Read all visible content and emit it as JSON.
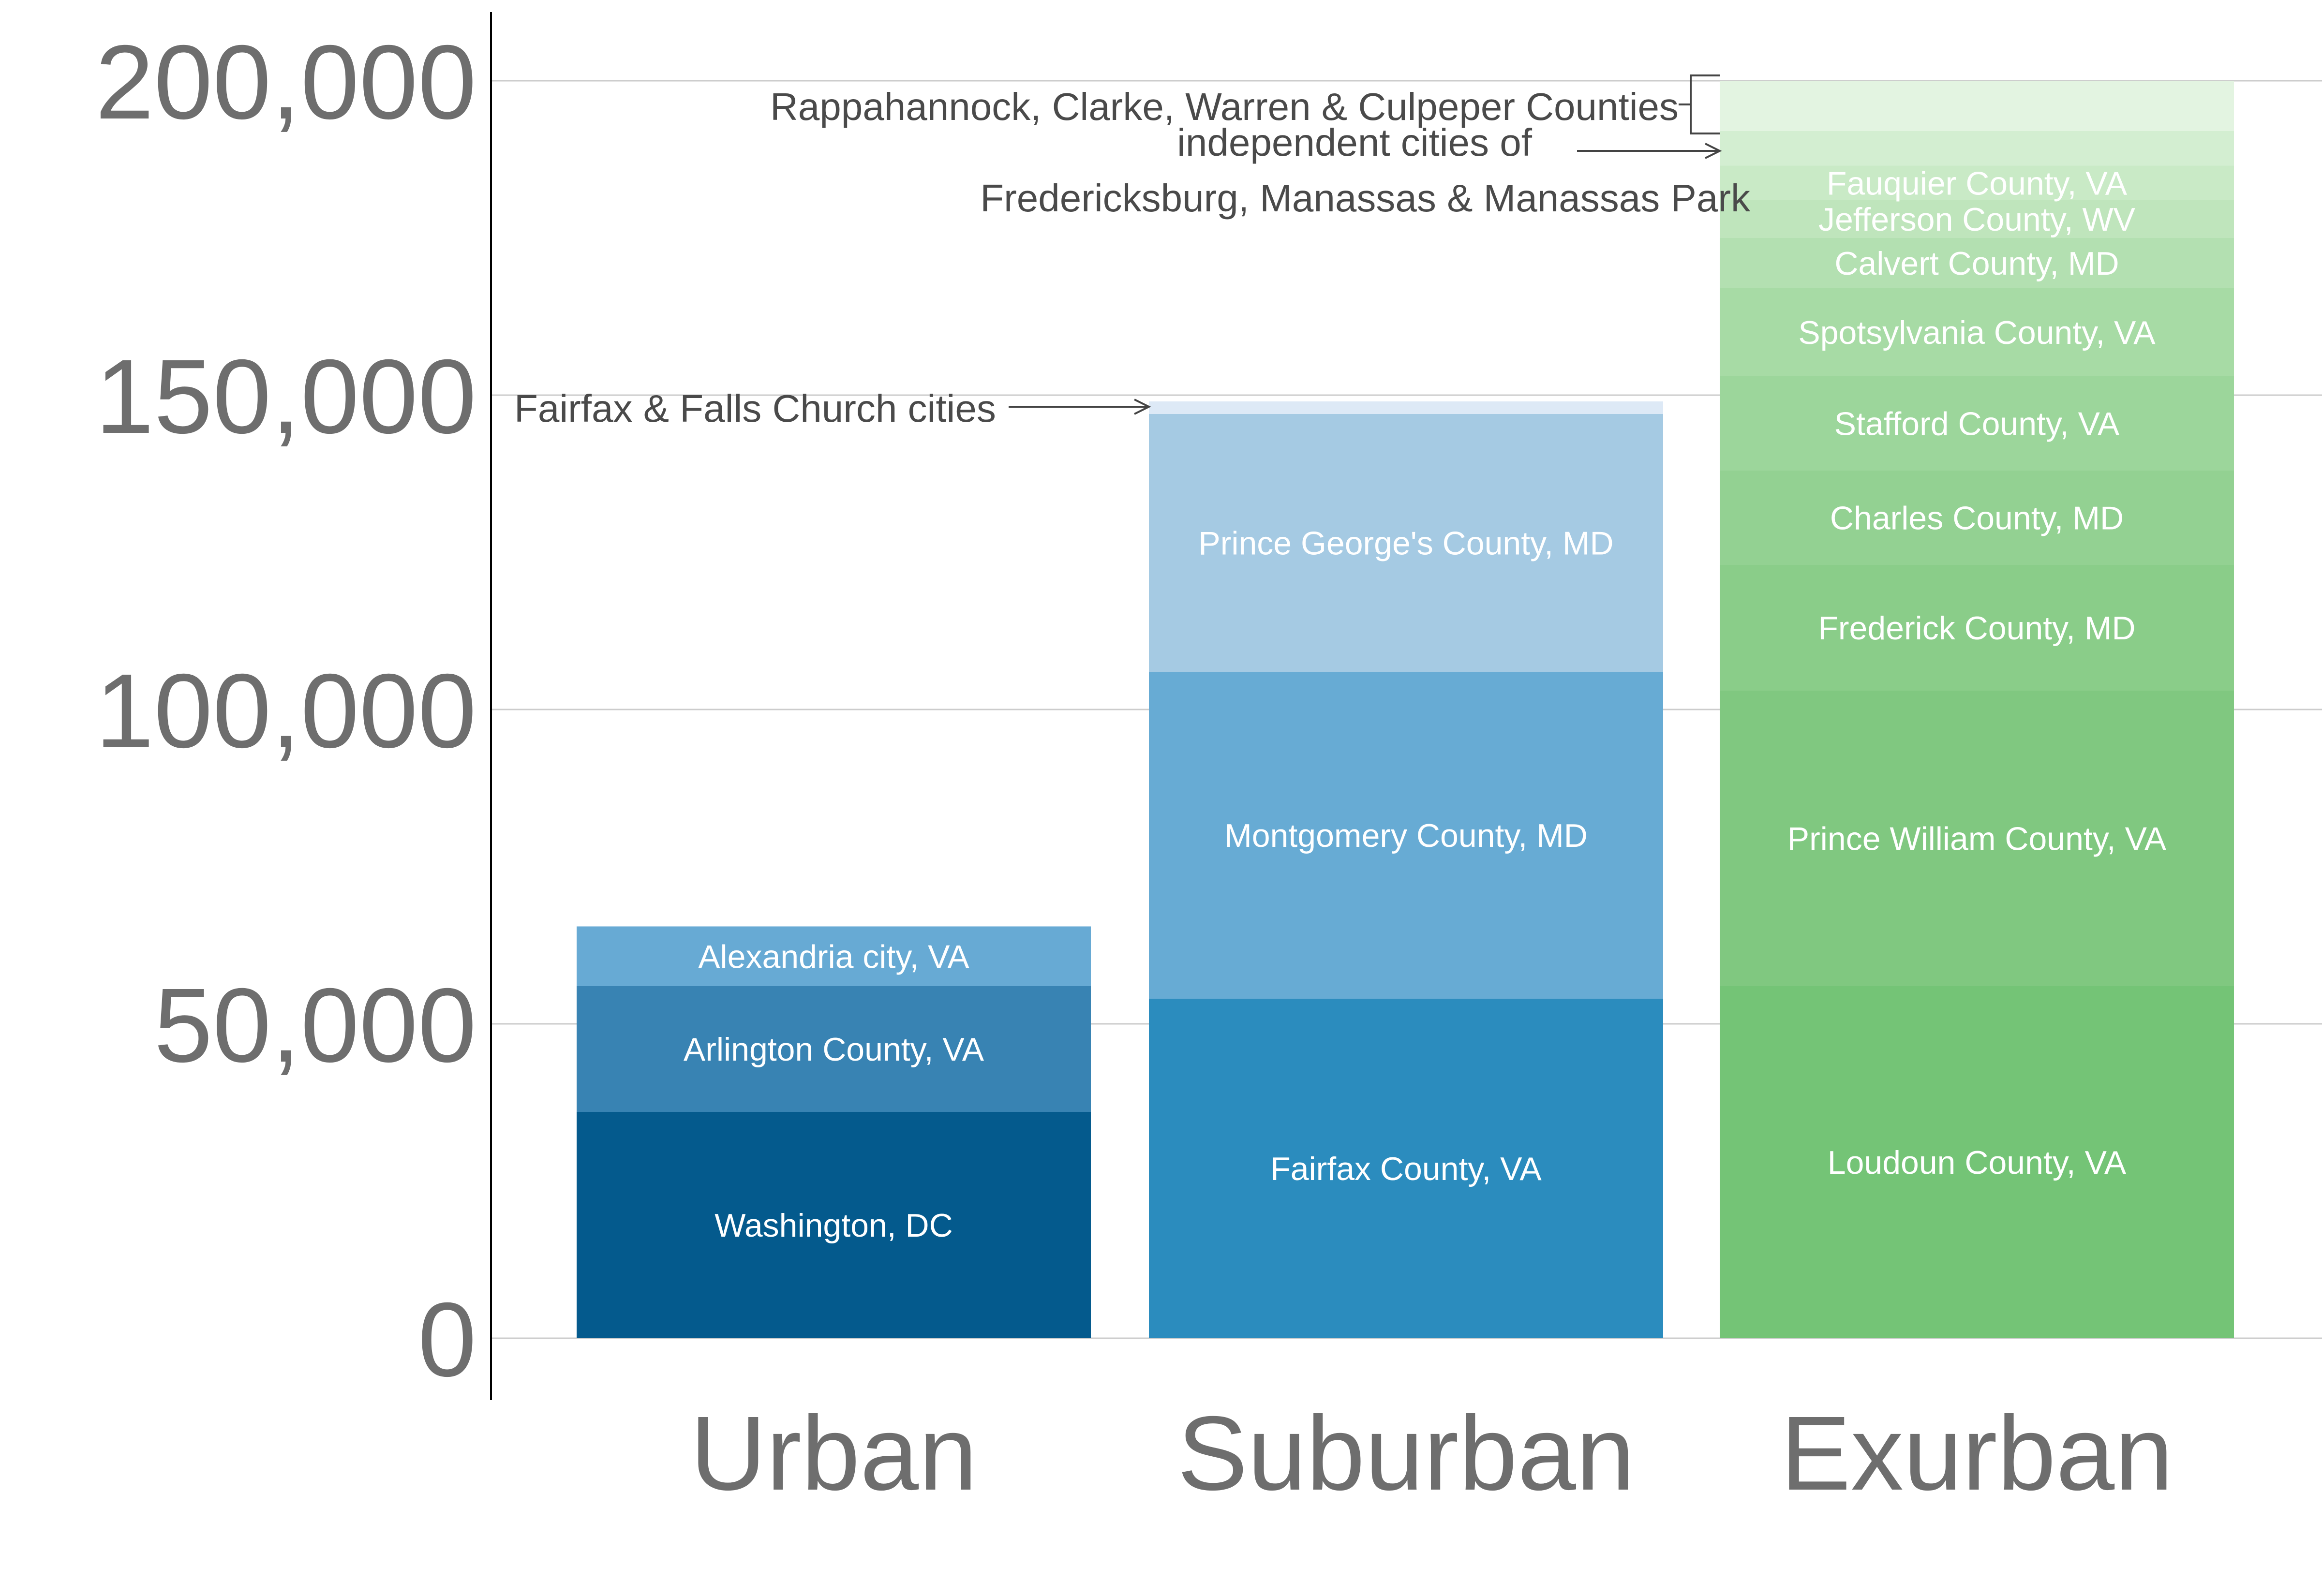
{
  "chart_data": {
    "type": "bar",
    "stacked": true,
    "title": "",
    "xlabel": "",
    "ylabel": "",
    "ylim": [
      -10000,
      210000
    ],
    "yticks": [
      0,
      50000,
      100000,
      150000,
      200000
    ],
    "ytick_labels": [
      "0",
      "50,000",
      "100,000",
      "150,000",
      "200,000"
    ],
    "grid": "horizontal",
    "categories": [
      "Urban",
      "Suburban",
      "Exurban"
    ],
    "stacks": [
      {
        "category": "Urban",
        "segments": [
          {
            "label": "Washington, DC",
            "value": 36000,
            "color": "#045a8d"
          },
          {
            "label": "Arlington County, VA",
            "value": 20000,
            "color": "#3883b3"
          },
          {
            "label": "Alexandria city, VA",
            "value": 9500,
            "color": "#67aad4"
          }
        ]
      },
      {
        "category": "Suburban",
        "segments": [
          {
            "label": "Fairfax County, VA",
            "value": 54000,
            "color": "#2b8cbe"
          },
          {
            "label": "Montgomery County, MD",
            "value": 52000,
            "color": "#67abd4"
          },
          {
            "label": "Prince George's County, MD",
            "value": 41000,
            "color": "#a5cae3"
          },
          {
            "label": "Fairfax & Falls Church cities",
            "value": 2000,
            "color": "#dde9f6"
          }
        ]
      },
      {
        "category": "Exurban",
        "segments": [
          {
            "label": "Loudoun County, VA",
            "value": 56000,
            "color": "#74c476"
          },
          {
            "label": "Prince William County, VA",
            "value": 47000,
            "color": "#80c880"
          },
          {
            "label": "Frederick County, MD",
            "value": 20000,
            "color": "#8acd89"
          },
          {
            "label": "Charles County, MD",
            "value": 15000,
            "color": "#93d192"
          },
          {
            "label": "Stafford County, VA",
            "value": 15000,
            "color": "#9cd69b"
          },
          {
            "label": "Spotsylvania County, VA",
            "value": 14000,
            "color": "#a7dba5"
          },
          {
            "label": "Calvert County, MD",
            "value": 8000,
            "color": "#b3e0b1"
          },
          {
            "label": "Jefferson County, WV",
            "value": 6000,
            "color": "#bfe5bc"
          },
          {
            "label": "Fauquier County, VA",
            "value": 5500,
            "color": "#c9eac6"
          },
          {
            "label": "independent cities of Fredericksburg, Manassas & Manassas Park",
            "value": 5500,
            "color": "#d3eed1"
          },
          {
            "label": "Rappahannock, Clarke, Warren & Culpeper Counties",
            "value": 8000,
            "color": "#e3f4e1"
          }
        ]
      }
    ],
    "annotations": [
      {
        "text": "Fairfax & Falls Church cities",
        "target": "Suburban: Fairfax & Falls Church cities"
      },
      {
        "text": "Rappahannock, Clarke, Warren & Culpeper Counties",
        "target": "Exurban: Rappahannock, Clarke, Warren & Culpeper Counties"
      },
      {
        "text": "independent cities of",
        "target": "Exurban: independent cities of Fredericksburg, Manassas & Manassas Park"
      },
      {
        "text": "Fredericksburg, Manassas & Manassas Park",
        "target": "Exurban: independent cities of Fredericksburg, Manassas & Manassas Park"
      }
    ],
    "colors": {
      "urban_palette": [
        "#045a8d",
        "#3883b3",
        "#67aad4"
      ],
      "suburban_palette": [
        "#2b8cbe",
        "#67abd4",
        "#a5cae3",
        "#dde9f6"
      ],
      "exurban_base": "#74c476",
      "tick_text": "#6e6e6e",
      "gridline": "#cccccc"
    }
  }
}
